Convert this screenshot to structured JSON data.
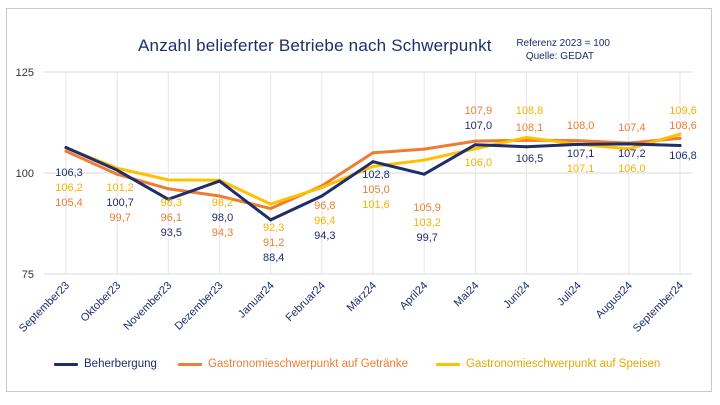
{
  "chart_data": {
    "type": "line",
    "title": "Anzahl belieferter Betriebe nach Schwerpunkt",
    "notes": [
      "Referenz 2023 = 100",
      "Quelle: GEDAT"
    ],
    "categories": [
      "September23",
      "Oktober23",
      "November23",
      "Dezember23",
      "Januar24",
      "Februar24",
      "März24",
      "April24",
      "Mai24",
      "Juni24",
      "Juli24",
      "August24",
      "September24"
    ],
    "ylim": [
      75,
      125
    ],
    "yticks": [
      "75",
      "100",
      "125"
    ],
    "grid": true,
    "legend_position": "bottom",
    "series": [
      {
        "name": "Beherbergung",
        "color": "#1f2d6b",
        "values": [
          106.3,
          100.7,
          93.5,
          98.0,
          88.4,
          94.3,
          102.8,
          99.7,
          107.0,
          106.5,
          107.1,
          107.2,
          106.8
        ],
        "labels": [
          "106,3",
          "100,7",
          "93,5",
          "98,0",
          "88,4",
          "94,3",
          "102,8",
          "99,7",
          "107,0",
          "106,5",
          "107,1",
          "107,2",
          "106,8"
        ]
      },
      {
        "name": "Gastronomieschwerpunkt auf Getränke",
        "color": "#ed7d31",
        "values": [
          105.4,
          99.7,
          96.1,
          94.3,
          91.2,
          96.8,
          105.0,
          105.9,
          107.9,
          108.1,
          108.0,
          107.4,
          108.6
        ],
        "labels": [
          "105,4",
          "99,7",
          "96,1",
          "94,3",
          "91,2",
          "96,8",
          "105,0",
          "105,9",
          "107,9",
          "108,1",
          "108,0",
          "107,4",
          "108,6"
        ]
      },
      {
        "name": "Gastronomieschwerpunkt auf Speisen",
        "color": "#ffc000",
        "values": [
          106.2,
          101.2,
          98.3,
          98.2,
          92.3,
          96.4,
          101.6,
          103.2,
          106.0,
          108.8,
          107.1,
          106.0,
          109.6
        ],
        "labels": [
          "106,2",
          "101,2",
          "98,3",
          "98,2",
          "92,3",
          "96,4",
          "101,6",
          "103,2",
          "106,0",
          "108,8",
          "107,1",
          "106,0",
          "109,6"
        ]
      }
    ]
  }
}
